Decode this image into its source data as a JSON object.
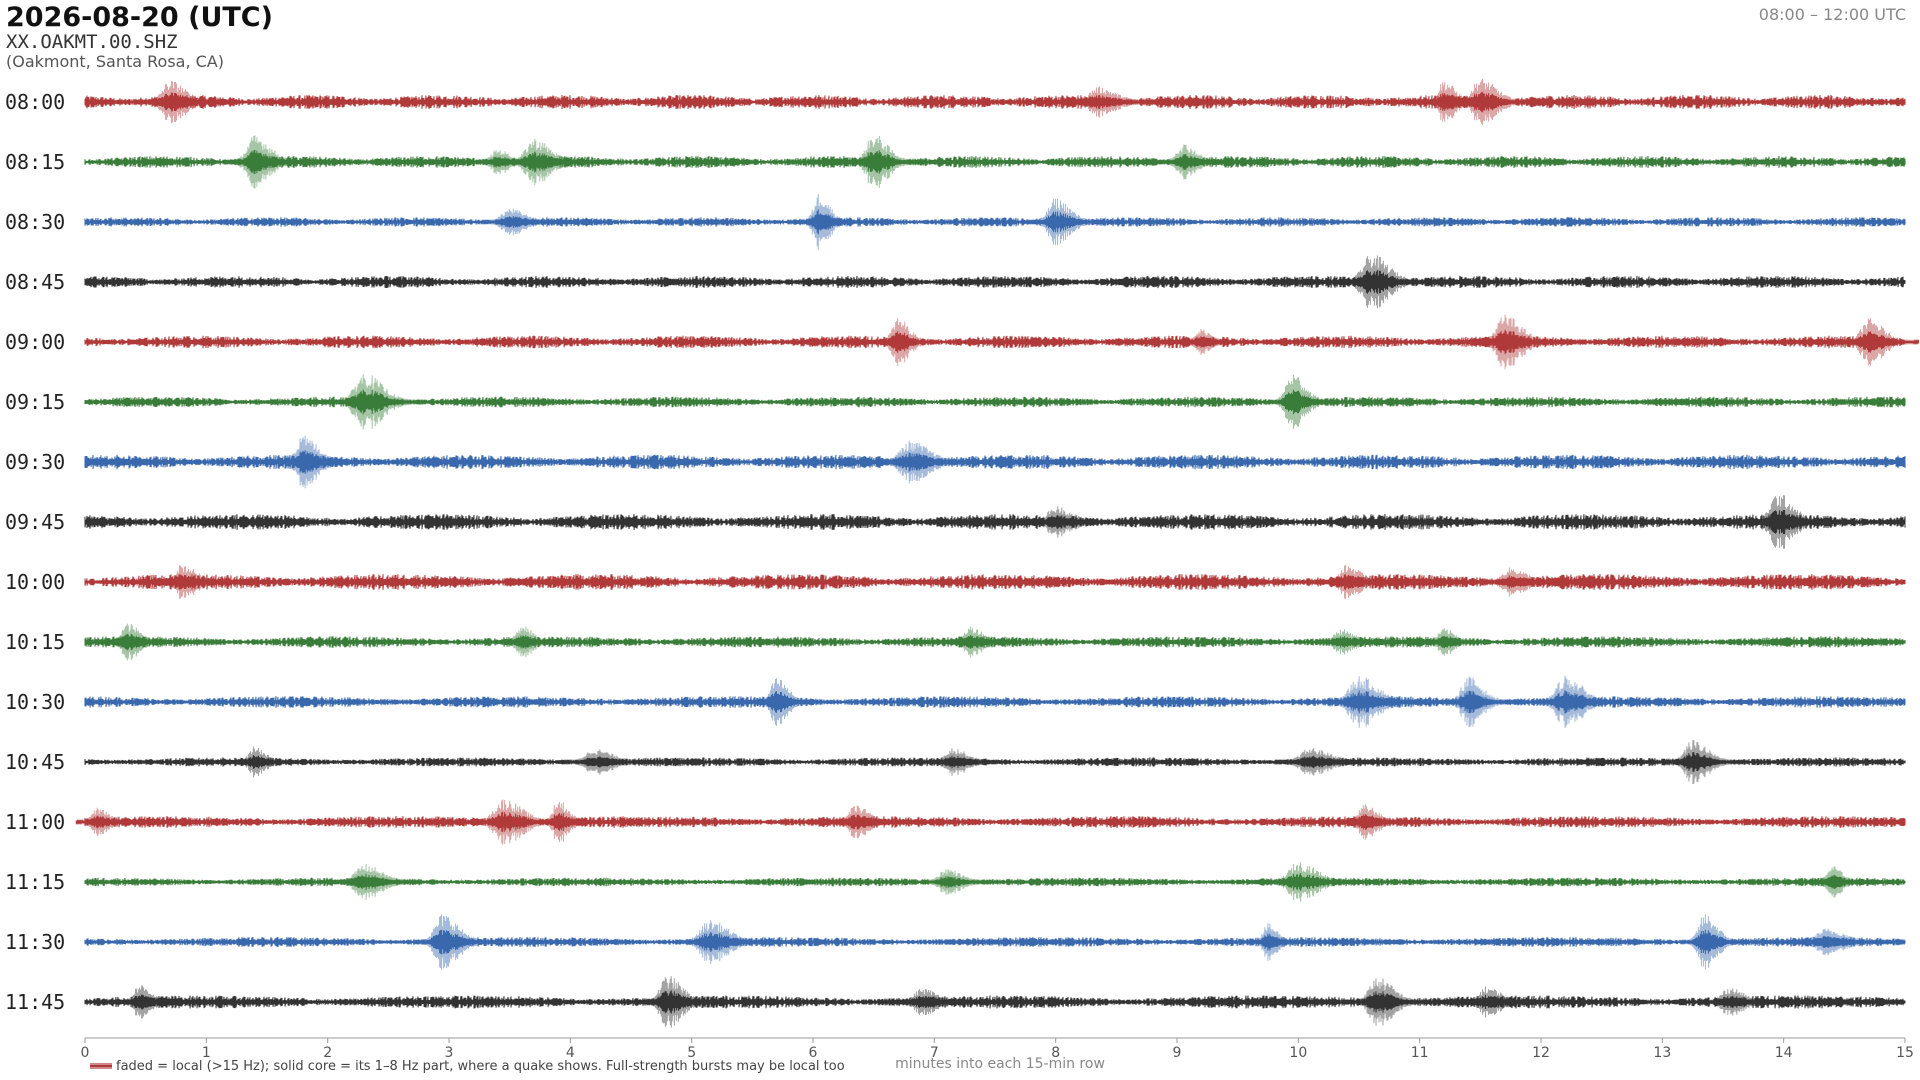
{
  "chart_data": {
    "type": "helicorder",
    "title": "2026-08-20  (UTC)",
    "subtitle": "XX.OAKMT.00.SHZ",
    "location": "(Oakmont, Santa Rosa, CA)",
    "time_range": "08:00 – 12:00 UTC",
    "xlabel": "minutes into each 15-min row",
    "legend": "faded = local (>15 Hz); solid core = its 1–8 Hz part, where a quake shows. Full-strength bursts may be local too",
    "legend_color": "#b03a3a",
    "xlim": [
      0,
      15
    ],
    "xticks": [
      0,
      1,
      2,
      3,
      4,
      5,
      6,
      7,
      8,
      9,
      10,
      11,
      12,
      13,
      14,
      15
    ],
    "rows": [
      {
        "label": "08:00",
        "color": "#b03a3a",
        "events": [
          0.7,
          8.35,
          11.2,
          11.5
        ]
      },
      {
        "label": "08:15",
        "color": "#3a7d3a",
        "events": [
          1.4,
          3.4,
          3.7,
          6.5,
          9.05
        ]
      },
      {
        "label": "08:30",
        "color": "#3a68ad",
        "events": [
          3.5,
          6.05,
          8.0
        ]
      },
      {
        "label": "08:45",
        "color": "#333333",
        "events": [
          10.6
        ]
      },
      {
        "label": "09:00",
        "color": "#b03a3a",
        "events": [
          6.7,
          9.2,
          11.7,
          14.7
        ]
      },
      {
        "label": "09:15",
        "color": "#3a7d3a",
        "events": [
          2.3,
          9.95
        ]
      },
      {
        "label": "09:30",
        "color": "#3a68ad",
        "events": [
          1.8,
          6.8
        ]
      },
      {
        "label": "09:45",
        "color": "#333333",
        "events": [
          8.0,
          13.95
        ]
      },
      {
        "label": "10:00",
        "color": "#b03a3a",
        "events": [
          0.8,
          10.4,
          11.75
        ]
      },
      {
        "label": "10:15",
        "color": "#3a7d3a",
        "events": [
          0.35,
          3.6,
          7.3,
          10.35,
          11.2
        ]
      },
      {
        "label": "10:30",
        "color": "#3a68ad",
        "events": [
          5.7,
          10.5,
          11.4,
          12.2
        ]
      },
      {
        "label": "10:45",
        "color": "#333333",
        "events": [
          1.4,
          4.2,
          7.15,
          10.1,
          13.25
        ]
      },
      {
        "label": "11:00",
        "color": "#b03a3a",
        "events": [
          0.1,
          3.45,
          3.9,
          6.35,
          10.55
        ]
      },
      {
        "label": "11:15",
        "color": "#3a7d3a",
        "events": [
          2.3,
          7.1,
          10.0,
          14.4
        ]
      },
      {
        "label": "11:30",
        "color": "#3a68ad",
        "events": [
          2.95,
          5.15,
          9.75,
          13.35,
          14.35
        ]
      },
      {
        "label": "11:45",
        "color": "#333333",
        "events": [
          0.45,
          4.8,
          6.9,
          10.65,
          11.55,
          13.55
        ]
      }
    ]
  }
}
